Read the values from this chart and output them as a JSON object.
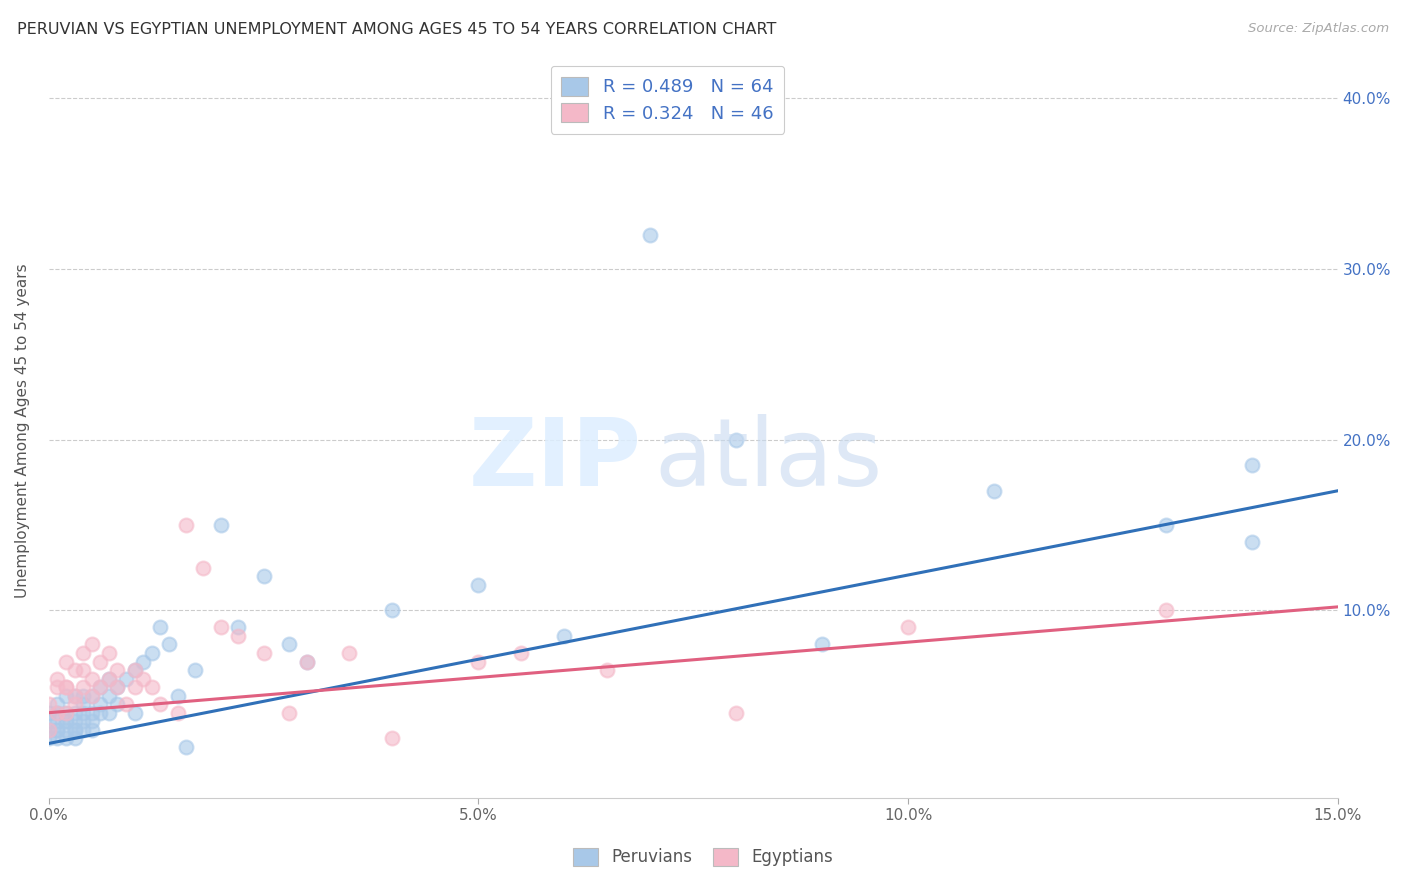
{
  "title": "PERUVIAN VS EGYPTIAN UNEMPLOYMENT AMONG AGES 45 TO 54 YEARS CORRELATION CHART",
  "source": "Source: ZipAtlas.com",
  "xlabel_label": "Peruvians",
  "xlabel_label2": "Egyptians",
  "ylabel": "Unemployment Among Ages 45 to 54 years",
  "xlim": [
    0.0,
    0.15
  ],
  "ylim": [
    -0.01,
    0.42
  ],
  "xticks": [
    0.0,
    0.05,
    0.1,
    0.15
  ],
  "xticklabels": [
    "0.0%",
    "5.0%",
    "10.0%",
    "15.0%"
  ],
  "yticks": [
    0.0,
    0.1,
    0.2,
    0.3,
    0.4
  ],
  "yticklabels": [
    "",
    "10.0%",
    "20.0%",
    "30.0%",
    "40.0%"
  ],
  "peruvian_color": "#a8c8e8",
  "egyptian_color": "#f4b8c8",
  "peruvian_line_color": "#3070b8",
  "egyptian_line_color": "#e06080",
  "R_peru": 0.489,
  "N_peru": 64,
  "R_egypt": 0.324,
  "N_egypt": 46,
  "legend_text_color": "#4472c4",
  "background_color": "#ffffff",
  "grid_color": "#cccccc",
  "peru_x": [
    0.0,
    0.0,
    0.0,
    0.0,
    0.001,
    0.001,
    0.001,
    0.001,
    0.001,
    0.001,
    0.002,
    0.002,
    0.002,
    0.002,
    0.002,
    0.002,
    0.003,
    0.003,
    0.003,
    0.003,
    0.003,
    0.003,
    0.004,
    0.004,
    0.004,
    0.004,
    0.004,
    0.005,
    0.005,
    0.005,
    0.005,
    0.006,
    0.006,
    0.006,
    0.007,
    0.007,
    0.007,
    0.008,
    0.008,
    0.009,
    0.01,
    0.01,
    0.011,
    0.012,
    0.013,
    0.014,
    0.015,
    0.016,
    0.017,
    0.02,
    0.022,
    0.025,
    0.028,
    0.03,
    0.04,
    0.05,
    0.06,
    0.07,
    0.08,
    0.09,
    0.11,
    0.13,
    0.14,
    0.14
  ],
  "peru_y": [
    0.03,
    0.035,
    0.04,
    0.025,
    0.03,
    0.04,
    0.035,
    0.025,
    0.045,
    0.03,
    0.035,
    0.03,
    0.04,
    0.025,
    0.035,
    0.05,
    0.03,
    0.04,
    0.035,
    0.025,
    0.05,
    0.03,
    0.04,
    0.035,
    0.03,
    0.05,
    0.045,
    0.04,
    0.035,
    0.05,
    0.03,
    0.045,
    0.04,
    0.055,
    0.05,
    0.04,
    0.06,
    0.055,
    0.045,
    0.06,
    0.065,
    0.04,
    0.07,
    0.075,
    0.09,
    0.08,
    0.05,
    0.02,
    0.065,
    0.15,
    0.09,
    0.12,
    0.08,
    0.07,
    0.1,
    0.115,
    0.085,
    0.32,
    0.2,
    0.08,
    0.17,
    0.15,
    0.185,
    0.14
  ],
  "egypt_x": [
    0.0,
    0.0,
    0.001,
    0.001,
    0.001,
    0.002,
    0.002,
    0.002,
    0.002,
    0.003,
    0.003,
    0.003,
    0.004,
    0.004,
    0.004,
    0.005,
    0.005,
    0.005,
    0.006,
    0.006,
    0.007,
    0.007,
    0.008,
    0.008,
    0.009,
    0.01,
    0.01,
    0.011,
    0.012,
    0.013,
    0.015,
    0.016,
    0.018,
    0.02,
    0.022,
    0.025,
    0.028,
    0.03,
    0.035,
    0.04,
    0.05,
    0.055,
    0.065,
    0.08,
    0.1,
    0.13
  ],
  "egypt_y": [
    0.03,
    0.045,
    0.06,
    0.04,
    0.055,
    0.055,
    0.07,
    0.04,
    0.055,
    0.045,
    0.065,
    0.05,
    0.075,
    0.055,
    0.065,
    0.06,
    0.08,
    0.05,
    0.07,
    0.055,
    0.075,
    0.06,
    0.065,
    0.055,
    0.045,
    0.065,
    0.055,
    0.06,
    0.055,
    0.045,
    0.04,
    0.15,
    0.125,
    0.09,
    0.085,
    0.075,
    0.04,
    0.07,
    0.075,
    0.025,
    0.07,
    0.075,
    0.065,
    0.04,
    0.09,
    0.1
  ],
  "peru_line_x0": 0.0,
  "peru_line_y0": 0.022,
  "peru_line_x1": 0.15,
  "peru_line_y1": 0.17,
  "egypt_line_x0": 0.0,
  "egypt_line_y0": 0.04,
  "egypt_line_x1": 0.15,
  "egypt_line_y1": 0.102
}
